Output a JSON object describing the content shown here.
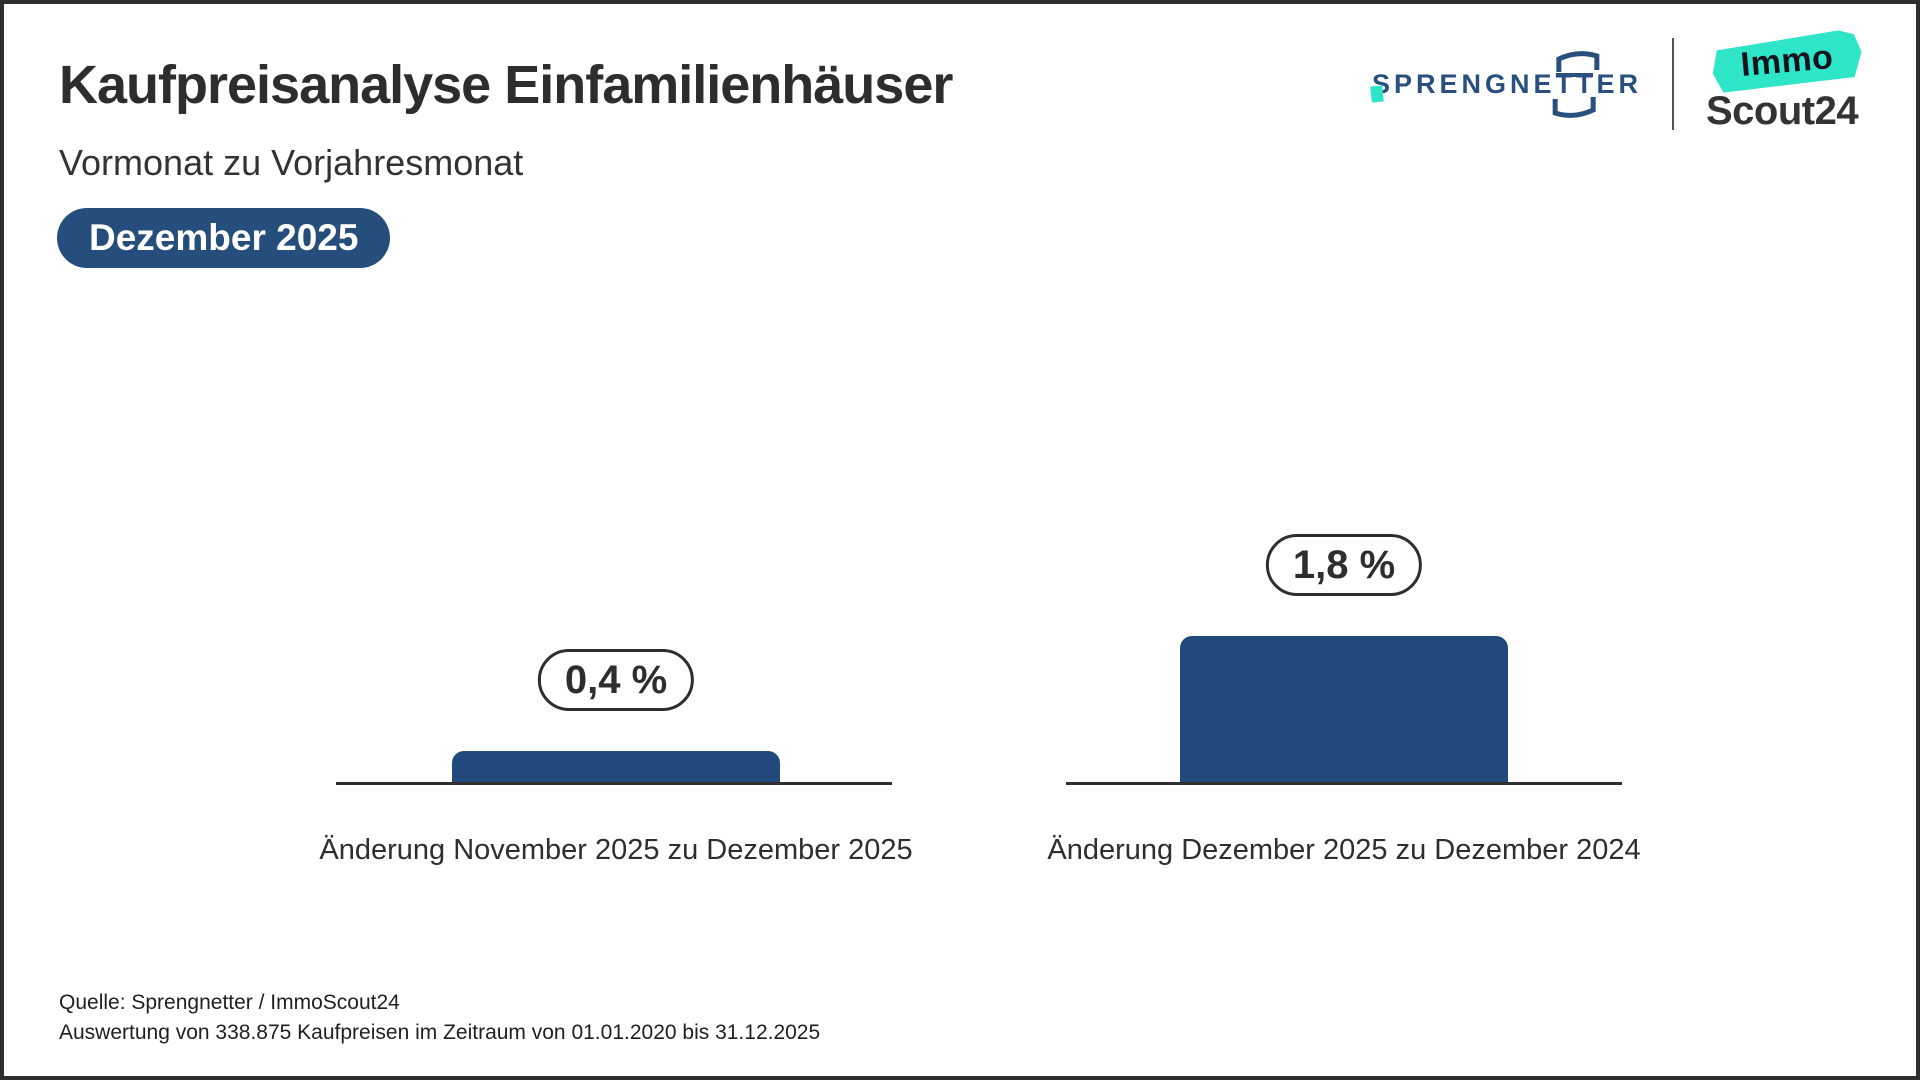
{
  "header": {
    "title": "Kaufpreisanalyse Einfamilienhäuser",
    "subtitle": "Vormonat zu Vorjahresmonat",
    "badge": "Dezember 2025"
  },
  "logos": {
    "sprengnetter": {
      "pre": "SPRENGNE",
      "mid": "TT",
      "post": "ER",
      "full": "SPRENGNETTER"
    },
    "immoscout": {
      "top": "Immo",
      "bottom": "Scout24",
      "full": "ImmoScout24"
    }
  },
  "chart_data": {
    "type": "bar",
    "title": "Kaufpreisanalyse Einfamilienhäuser",
    "subtitle": "Vormonat zu Vorjahresmonat",
    "period": "Dezember 2025",
    "categories": [
      "Änderung November 2025 zu Dezember 2025",
      "Änderung Dezember 2025 zu Dezember 2024"
    ],
    "values": [
      0.4,
      1.8
    ],
    "value_labels": [
      "0,4 %",
      "1,8 %"
    ],
    "unit": "%",
    "bar_color": "#21497B",
    "axis_color": "#2e2e2e",
    "ylim": [
      0,
      2
    ],
    "grid": false,
    "legend": false
  },
  "footer": {
    "line1": "Quelle: Sprengnetter / ImmoScout24",
    "line2": "Auswertung von 338.875 Kaufpreisen im Zeitraum von 01.01.2020 bis 31.12.2025"
  },
  "colors": {
    "accent_blue": "#254E7C",
    "bar_blue": "#21497B",
    "teal": "#2EE5C8",
    "text_dark": "#2d2d2d",
    "border": "#2e2e2e"
  }
}
